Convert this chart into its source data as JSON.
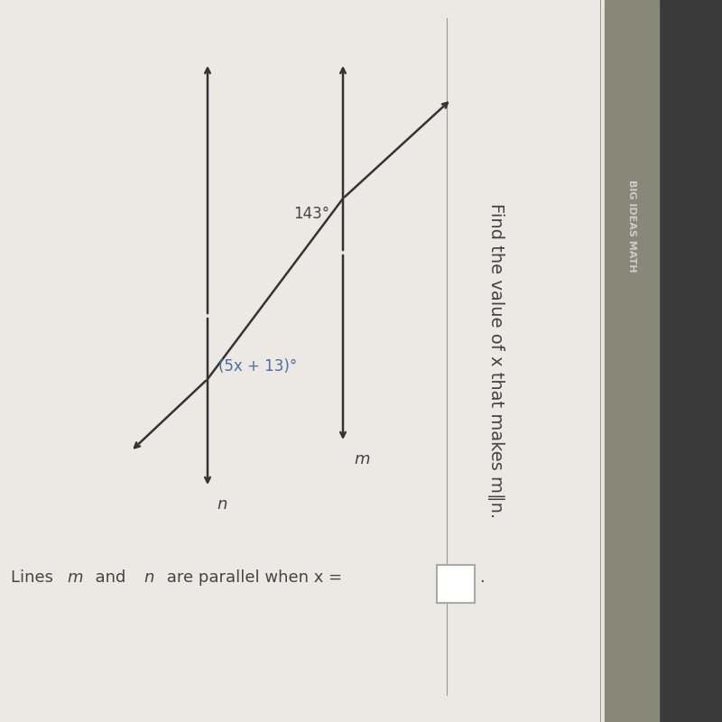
{
  "title": "Find the value of x that makes m∥n.",
  "header": "BIG IDEAS MATH",
  "angle1_label": "143°",
  "angle2_label": "(5x + 13)°",
  "line_m_label": "m",
  "line_n_label": "n",
  "bottom_text_1": "Lines ",
  "bottom_text_m": "m",
  "bottom_text_2": "  and ",
  "bottom_text_n": "n",
  "bottom_text_3": " are parallel when x = ",
  "background_color": "#ece9e4",
  "right_panel_color": "#5a5a5a",
  "right_panel_color2": "#888880",
  "text_color_dark": "#444444",
  "text_color_blue": "#4a6fa5",
  "line_color": "#333333",
  "box_color": "#ffffff",
  "separator_color": "#999999"
}
